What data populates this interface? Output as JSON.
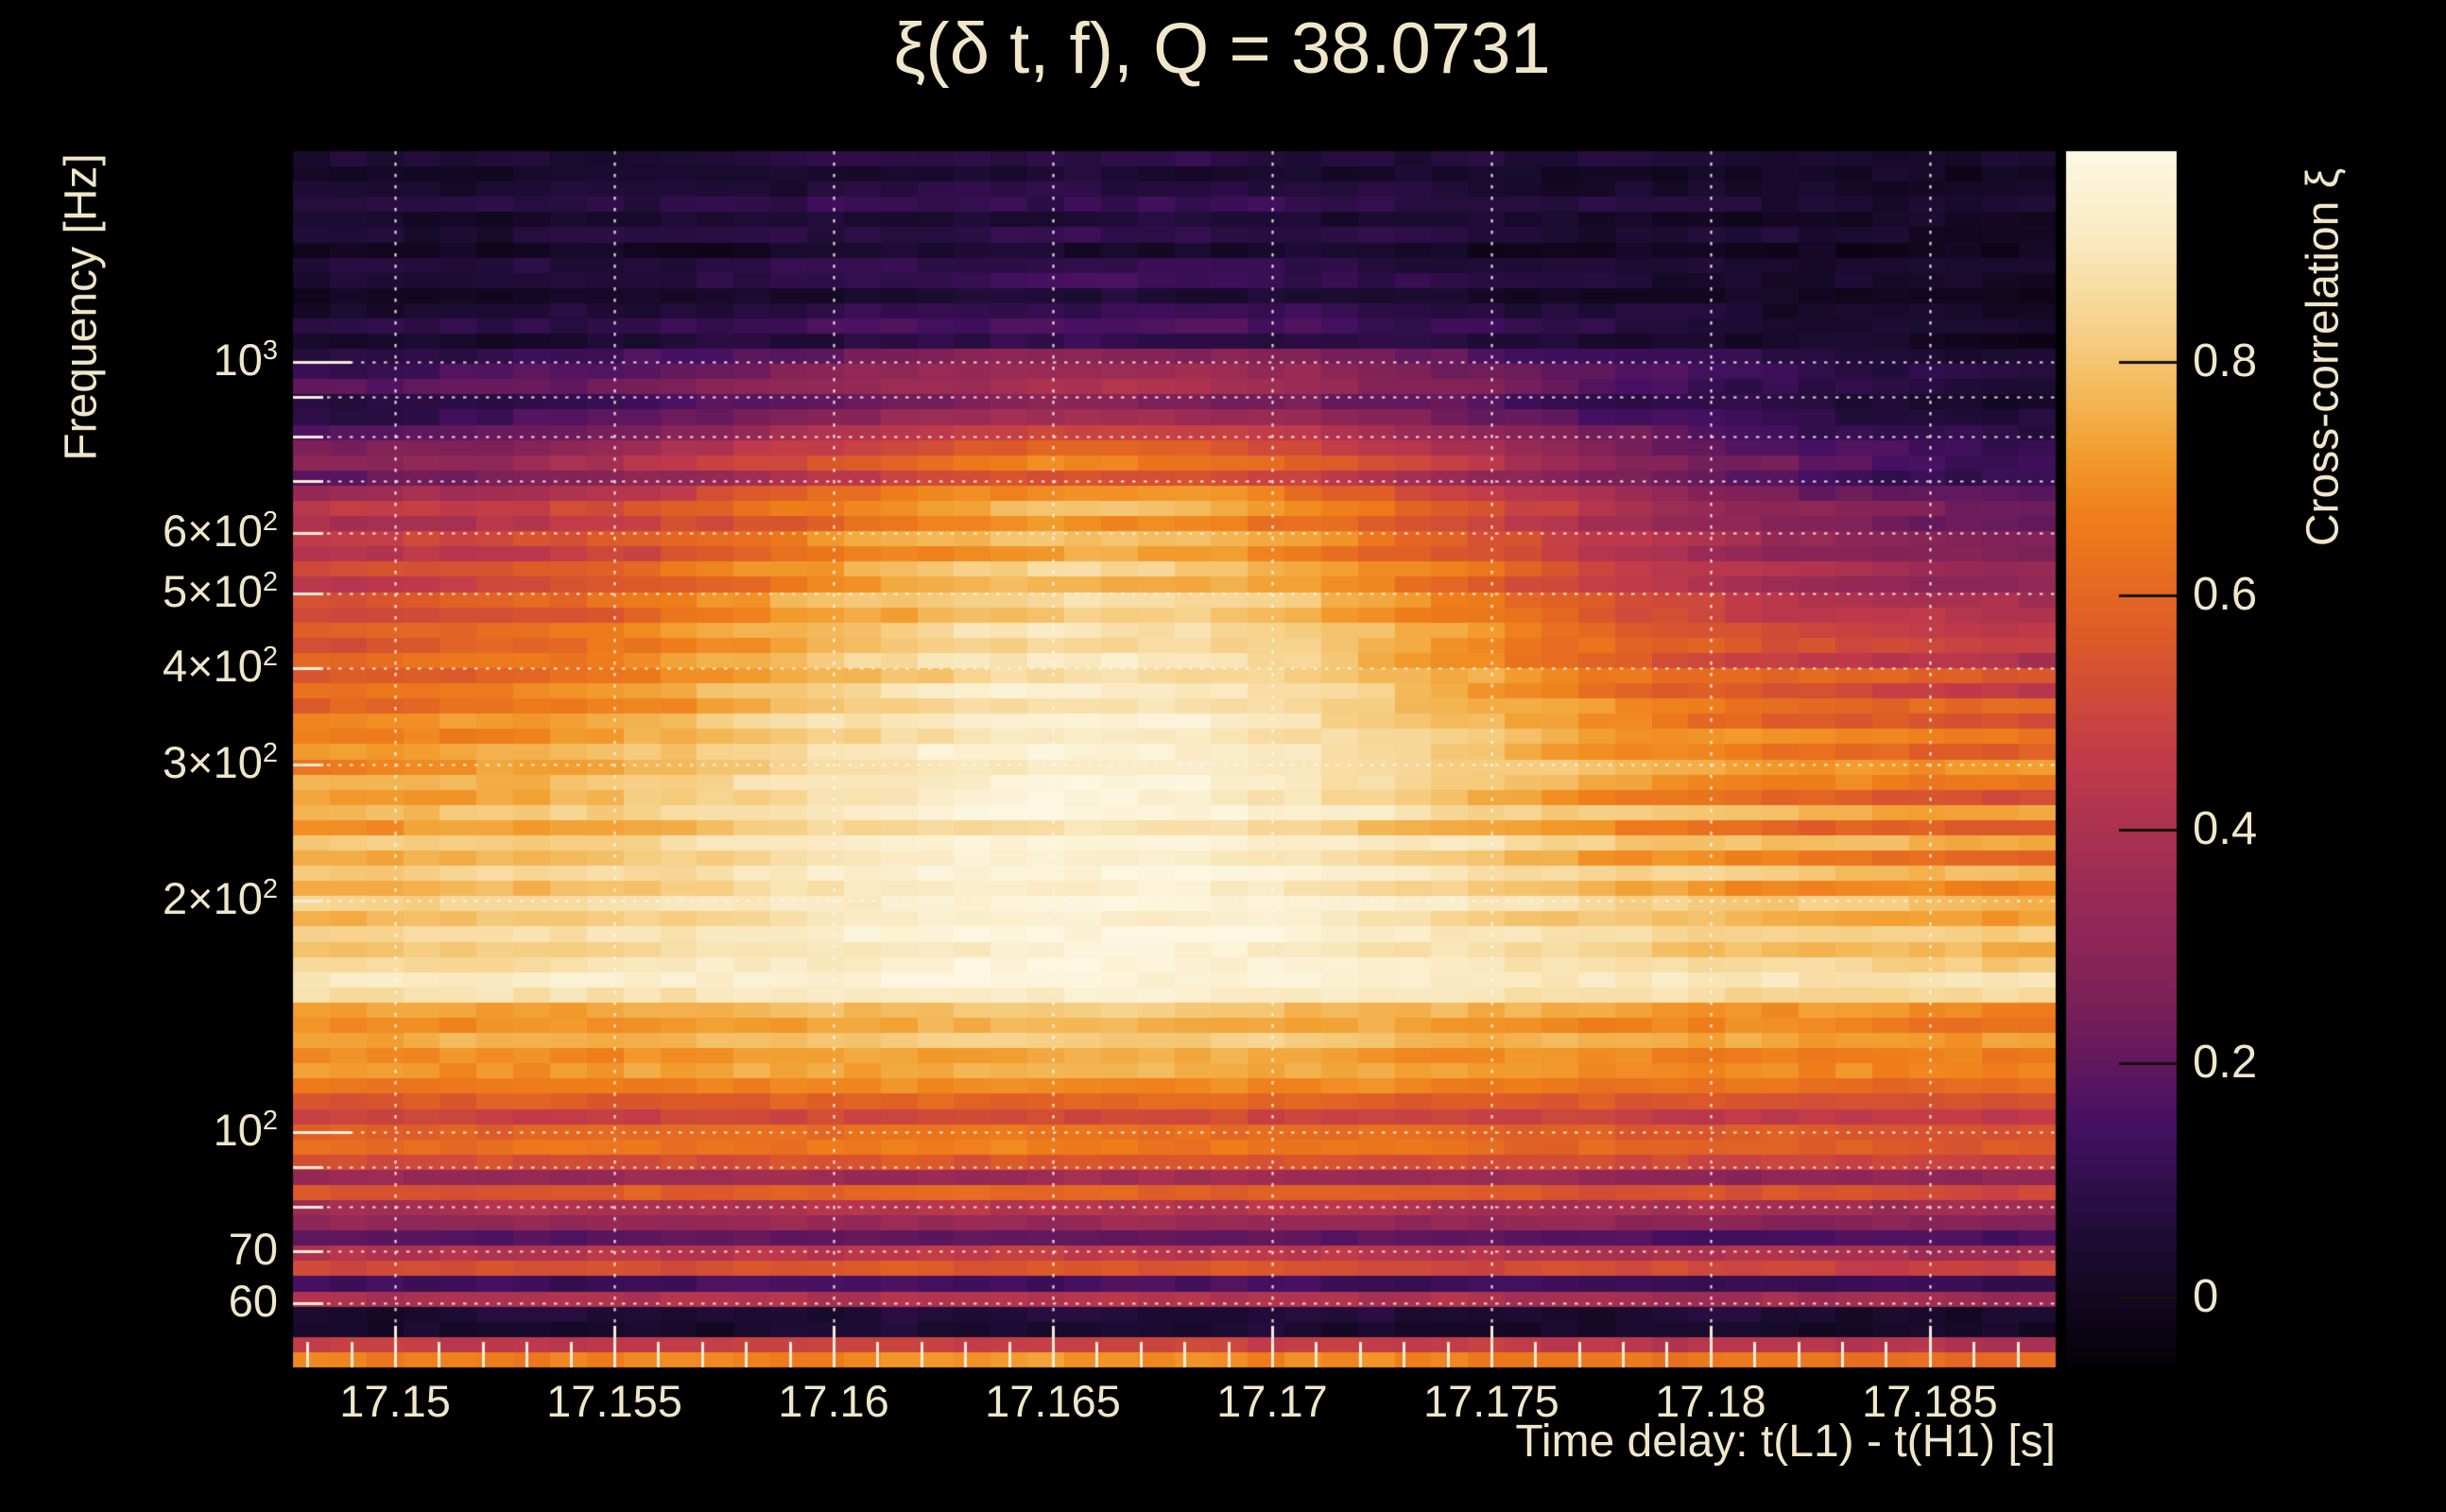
{
  "title": {
    "text": "ξ(δ t, f), Q = 38.0731"
  },
  "chart_data": {
    "type": "heatmap",
    "title": "ξ(δ t, f), Q = 38.0731",
    "q_value": 38.0731,
    "xlabel": "Time delay: t(L1) - t(H1) [s]",
    "ylabel": "Frequency [Hz]",
    "colorbar_label": "Cross-correlation ξ",
    "x_range_s": [
      17.14767,
      17.18787
    ],
    "y_range_hz": [
      49.5,
      1877
    ],
    "y_scale": "log",
    "value_range": [
      -0.06,
      0.98
    ],
    "x_ticks": [
      {
        "t": 17.15,
        "label": "17.15"
      },
      {
        "t": 17.155,
        "label": "17.155"
      },
      {
        "t": 17.16,
        "label": "17.16"
      },
      {
        "t": 17.165,
        "label": "17.165"
      },
      {
        "t": 17.17,
        "label": "17.17"
      },
      {
        "t": 17.175,
        "label": "17.175"
      },
      {
        "t": 17.18,
        "label": "17.18"
      },
      {
        "t": 17.185,
        "label": "17.185"
      }
    ],
    "x_minor_step_s": 0.001,
    "y_ticks": [
      {
        "f": 1000,
        "base": "10",
        "exp": "3"
      },
      {
        "f": 600,
        "base": "6×10",
        "exp": "2"
      },
      {
        "f": 500,
        "base": "5×10",
        "exp": "2"
      },
      {
        "f": 400,
        "base": "4×10",
        "exp": "2"
      },
      {
        "f": 300,
        "base": "3×10",
        "exp": "2"
      },
      {
        "f": 200,
        "base": "2×10",
        "exp": "2"
      },
      {
        "f": 100,
        "base": "10",
        "exp": "2"
      },
      {
        "f": 70,
        "base": "70",
        "exp": ""
      },
      {
        "f": 60,
        "base": "60",
        "exp": ""
      }
    ],
    "y_gridline_freqs": [
      60,
      70,
      80,
      90,
      100,
      200,
      300,
      400,
      500,
      600,
      700,
      800,
      900,
      1000
    ],
    "colorbar_ticks": [
      {
        "v": 0.8,
        "label": "0.8"
      },
      {
        "v": 0.6,
        "label": "0.6"
      },
      {
        "v": 0.4,
        "label": "0.4"
      },
      {
        "v": 0.2,
        "label": "0.2"
      },
      {
        "v": 0.0,
        "label": "0"
      }
    ],
    "colormap": "inferno-like",
    "colormap_stops": [
      [
        0.0,
        "#050108"
      ],
      [
        0.1,
        "#1c0c33"
      ],
      [
        0.2,
        "#451062"
      ],
      [
        0.3,
        "#7c2058"
      ],
      [
        0.4,
        "#9c2c54"
      ],
      [
        0.5,
        "#c03a4a"
      ],
      [
        0.6,
        "#dd5a28"
      ],
      [
        0.7,
        "#ef7e1a"
      ],
      [
        0.75,
        "#f29c2d"
      ],
      [
        0.8,
        "#f3b858"
      ],
      [
        0.85,
        "#f6cf85"
      ],
      [
        0.92,
        "#f9e7bc"
      ],
      [
        1.0,
        "#fdf8e4"
      ]
    ],
    "time_envelope": {
      "center_s": 17.1665,
      "sigma_s": 0.011
    },
    "n_time_bins": 48,
    "n_freq_rows": 80,
    "texture_amp": 0.045,
    "rows_lcr": [
      [
        0.1,
        0.14,
        0.08
      ],
      [
        0.07,
        0.1,
        0.06
      ],
      [
        0.09,
        0.13,
        0.07
      ],
      [
        0.12,
        0.17,
        0.09
      ],
      [
        0.07,
        0.11,
        0.06
      ],
      [
        0.1,
        0.15,
        0.08
      ],
      [
        0.05,
        0.09,
        0.05
      ],
      [
        0.11,
        0.16,
        0.08
      ],
      [
        0.08,
        0.18,
        0.07
      ],
      [
        0.05,
        0.11,
        0.05
      ],
      [
        0.09,
        0.17,
        0.07
      ],
      [
        0.12,
        0.22,
        0.09
      ],
      [
        0.07,
        0.15,
        0.06
      ],
      [
        0.11,
        0.34,
        0.1
      ],
      [
        0.16,
        0.4,
        0.12
      ],
      [
        0.21,
        0.44,
        0.1
      ],
      [
        0.11,
        0.32,
        0.08
      ],
      [
        0.13,
        0.42,
        0.1
      ],
      [
        0.19,
        0.54,
        0.12
      ],
      [
        0.26,
        0.62,
        0.15
      ],
      [
        0.31,
        0.7,
        0.17
      ],
      [
        0.23,
        0.57,
        0.14
      ],
      [
        0.36,
        0.74,
        0.2
      ],
      [
        0.46,
        0.8,
        0.26
      ],
      [
        0.41,
        0.72,
        0.24
      ],
      [
        0.49,
        0.82,
        0.3
      ],
      [
        0.43,
        0.76,
        0.28
      ],
      [
        0.53,
        0.86,
        0.36
      ],
      [
        0.47,
        0.8,
        0.33
      ],
      [
        0.56,
        0.89,
        0.4
      ],
      [
        0.51,
        0.84,
        0.44
      ],
      [
        0.59,
        0.91,
        0.48
      ],
      [
        0.56,
        0.88,
        0.52
      ],
      [
        0.61,
        0.93,
        0.42
      ],
      [
        0.56,
        0.89,
        0.6
      ],
      [
        0.66,
        0.95,
        0.48
      ],
      [
        0.61,
        0.91,
        0.63
      ],
      [
        0.71,
        0.96,
        0.55
      ],
      [
        0.67,
        0.94,
        0.68
      ],
      [
        0.73,
        0.97,
        0.6
      ],
      [
        0.69,
        0.95,
        0.72
      ],
      [
        0.76,
        0.97,
        0.66
      ],
      [
        0.73,
        0.96,
        0.55
      ],
      [
        0.79,
        0.98,
        0.76
      ],
      [
        0.71,
        0.91,
        0.58
      ],
      [
        0.81,
        0.98,
        0.78
      ],
      [
        0.76,
        0.96,
        0.62
      ],
      [
        0.83,
        0.99,
        0.8
      ],
      [
        0.77,
        0.95,
        0.68
      ],
      [
        0.84,
        0.99,
        0.81
      ],
      [
        0.79,
        0.96,
        0.74
      ],
      [
        0.86,
        0.99,
        0.83
      ],
      [
        0.81,
        0.96,
        0.78
      ],
      [
        0.87,
        0.98,
        0.85
      ],
      [
        0.93,
        0.98,
        0.9
      ],
      [
        0.89,
        0.95,
        0.86
      ],
      [
        0.75,
        0.83,
        0.72
      ],
      [
        0.71,
        0.79,
        0.68
      ],
      [
        0.77,
        0.85,
        0.74
      ],
      [
        0.71,
        0.77,
        0.68
      ],
      [
        0.73,
        0.79,
        0.7
      ],
      [
        0.67,
        0.73,
        0.64
      ],
      [
        0.59,
        0.63,
        0.56
      ],
      [
        0.51,
        0.55,
        0.48
      ],
      [
        0.61,
        0.67,
        0.58
      ],
      [
        0.65,
        0.69,
        0.6
      ],
      [
        0.55,
        0.59,
        0.52
      ],
      [
        0.37,
        0.41,
        0.35
      ],
      [
        0.59,
        0.63,
        0.55
      ],
      [
        0.43,
        0.47,
        0.4
      ],
      [
        0.36,
        0.39,
        0.33
      ],
      [
        0.22,
        0.25,
        0.2
      ],
      [
        0.46,
        0.49,
        0.42
      ],
      [
        0.56,
        0.59,
        0.52
      ],
      [
        0.18,
        0.2,
        0.16
      ],
      [
        0.43,
        0.46,
        0.4
      ],
      [
        0.1,
        0.11,
        0.09
      ],
      [
        0.08,
        0.09,
        0.07
      ],
      [
        0.49,
        0.53,
        0.45
      ],
      [
        0.69,
        0.73,
        0.65
      ]
    ]
  }
}
